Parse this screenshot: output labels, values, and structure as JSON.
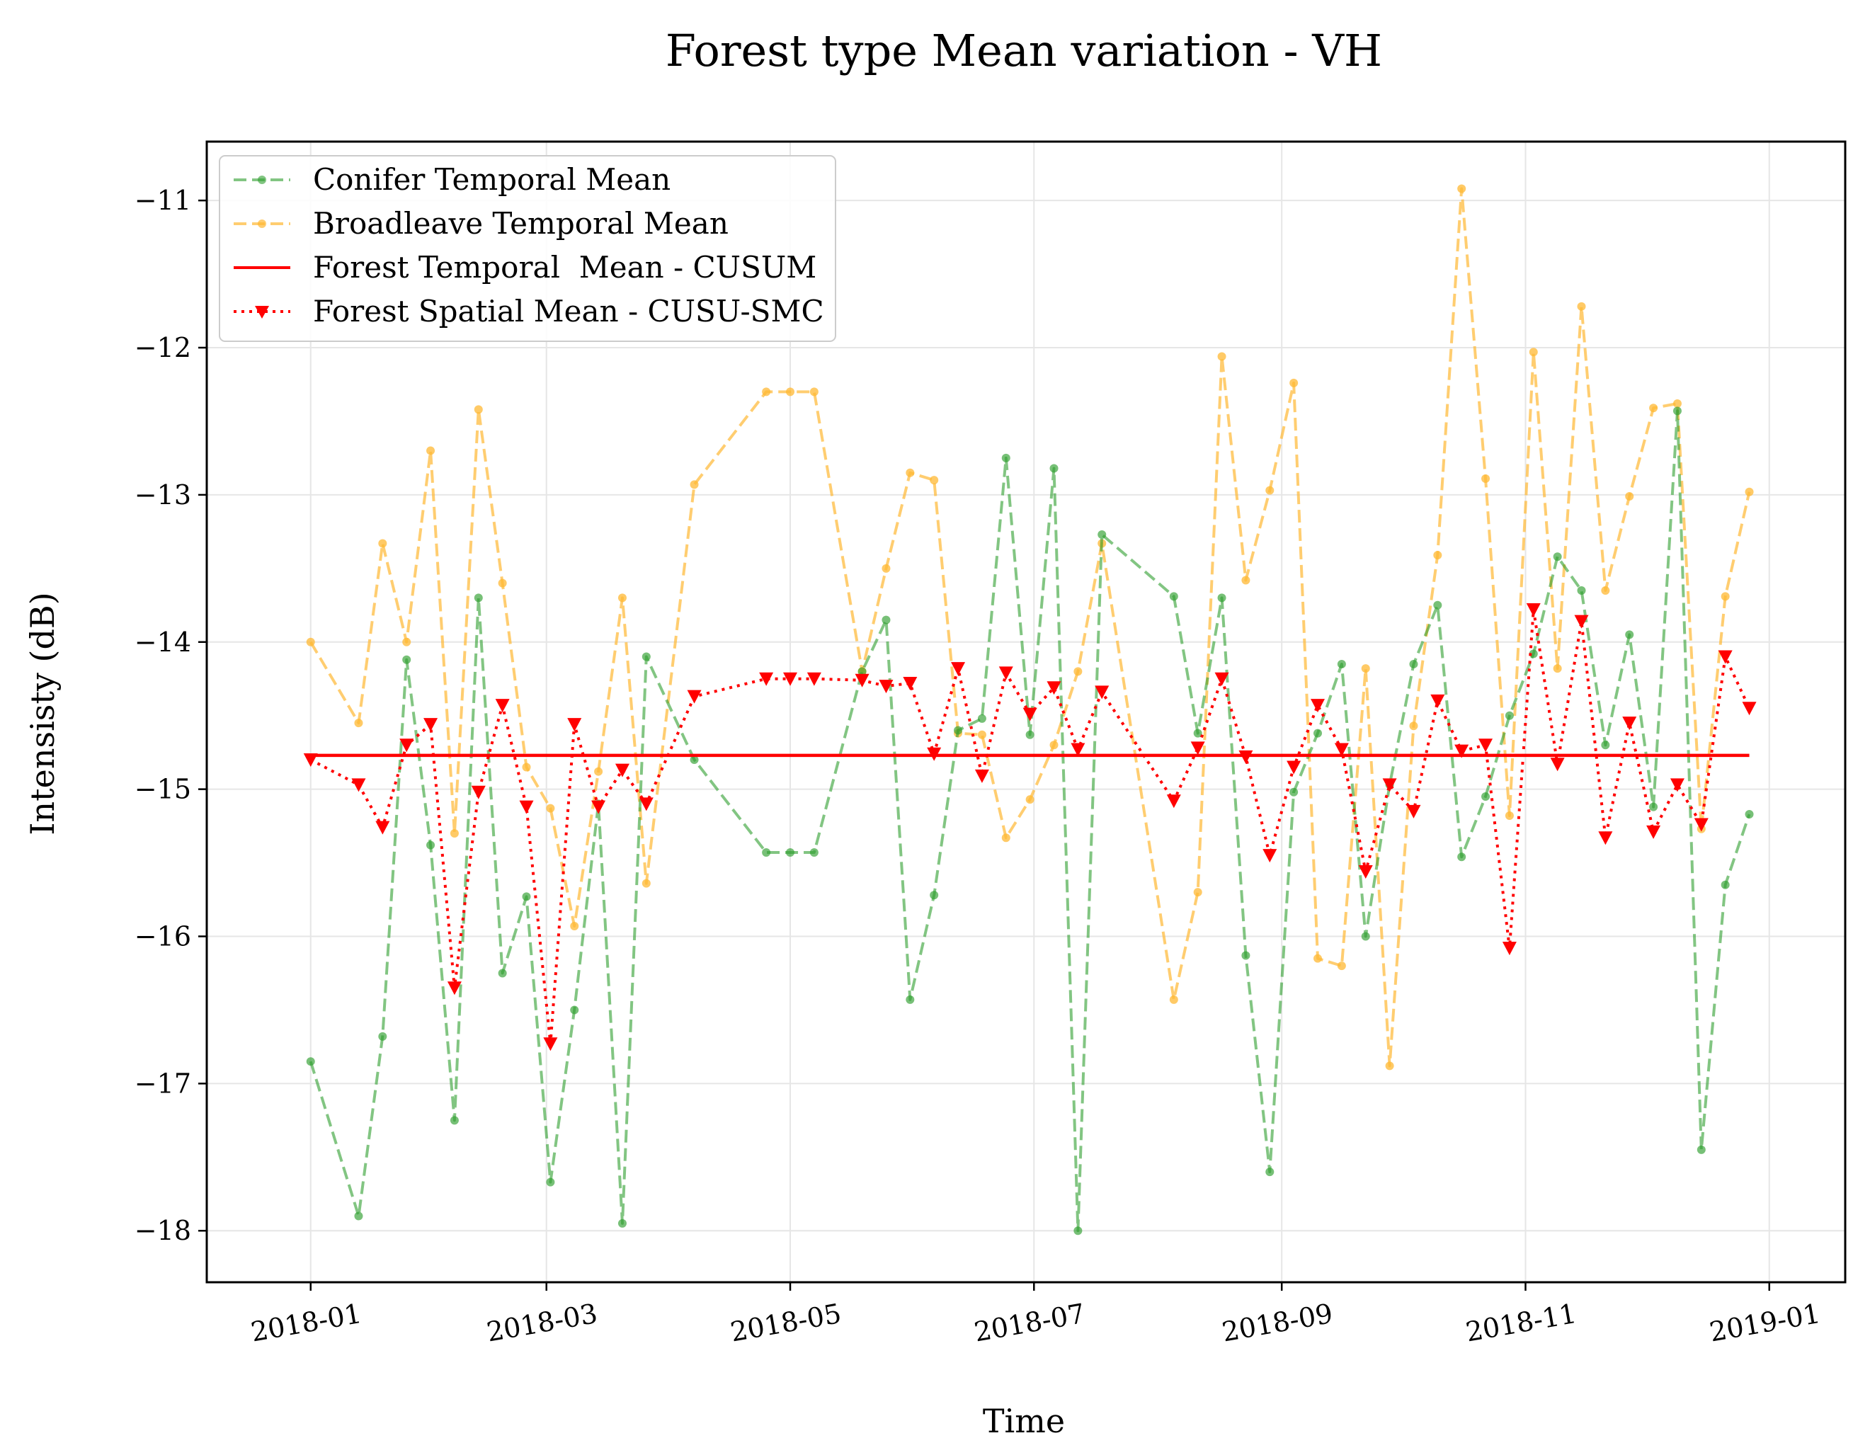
{
  "chart_data": {
    "type": "line",
    "title": "Forest type Mean variation - VH",
    "xlabel": "Time",
    "ylabel": "Intensisty (dB)",
    "xlim": [
      "2017-12-06",
      "2019-01-20"
    ],
    "ylim": [
      -18.35,
      -10.6
    ],
    "grid": true,
    "legend_position": "top-left",
    "x_ticks": [
      "2018-01",
      "2018-03",
      "2018-05",
      "2018-07",
      "2018-09",
      "2018-11",
      "2019-01"
    ],
    "x_tick_dates": [
      "2018-01-01",
      "2018-03-01",
      "2018-05-01",
      "2018-07-01",
      "2018-09-01",
      "2018-11-01",
      "2019-01-01"
    ],
    "y_ticks": [
      -11,
      -12,
      -13,
      -14,
      -15,
      -16,
      -17,
      -18
    ],
    "y_tick_labels": [
      "−11",
      "−12",
      "−13",
      "−14",
      "−15",
      "−16",
      "−17",
      "−18"
    ],
    "dates": [
      "2018-01-01",
      "2018-01-13",
      "2018-01-19",
      "2018-01-25",
      "2018-01-31",
      "2018-02-06",
      "2018-02-12",
      "2018-02-18",
      "2018-02-24",
      "2018-03-02",
      "2018-03-08",
      "2018-03-14",
      "2018-03-20",
      "2018-03-26",
      "2018-04-07",
      "2018-04-25",
      "2018-05-01",
      "2018-05-07",
      "2018-05-19",
      "2018-05-25",
      "2018-05-31",
      "2018-06-06",
      "2018-06-12",
      "2018-06-18",
      "2018-06-24",
      "2018-06-30",
      "2018-07-06",
      "2018-07-12",
      "2018-07-18",
      "2018-08-05",
      "2018-08-11",
      "2018-08-17",
      "2018-08-23",
      "2018-08-29",
      "2018-09-04",
      "2018-09-10",
      "2018-09-16",
      "2018-09-22",
      "2018-09-28",
      "2018-10-04",
      "2018-10-10",
      "2018-10-16",
      "2018-10-22",
      "2018-10-28",
      "2018-11-03",
      "2018-11-09",
      "2018-11-15",
      "2018-11-21",
      "2018-11-27",
      "2018-12-03",
      "2018-12-09",
      "2018-12-15",
      "2018-12-21",
      "2018-12-27"
    ],
    "series": [
      {
        "name": "Conifer Temporal Mean",
        "color": "#2e9e2e",
        "style": "dashed-dot-markers",
        "values": [
          -16.85,
          -17.9,
          -16.68,
          -14.12,
          -15.38,
          -17.25,
          -13.7,
          -16.25,
          -15.73,
          -17.67,
          -16.5,
          -15.1,
          -17.95,
          -14.1,
          -14.8,
          -15.43,
          -15.43,
          -15.43,
          -14.2,
          -13.85,
          -16.43,
          -15.72,
          -14.6,
          -14.52,
          -12.75,
          -14.63,
          -12.82,
          -18.0,
          -13.27,
          -13.69,
          -14.62,
          -13.7,
          -16.13,
          -17.6,
          -15.02,
          -14.62,
          -14.15,
          -16.0,
          -14.97,
          -14.15,
          -13.75,
          -15.46,
          -15.05,
          -14.5,
          -14.08,
          -13.42,
          -13.65,
          -14.7,
          -13.95,
          -15.12,
          -12.43,
          -17.45,
          -15.65,
          -15.17
        ]
      },
      {
        "name": "Broadleave Temporal Mean",
        "color": "#ffb833",
        "style": "dashed-dot-markers",
        "values": [
          -14.0,
          -14.55,
          -13.33,
          -14.0,
          -12.7,
          -15.3,
          -12.42,
          -13.6,
          -14.85,
          -15.13,
          -15.93,
          -14.88,
          -13.7,
          -15.64,
          -12.93,
          -12.3,
          -12.3,
          -12.3,
          -14.2,
          -13.5,
          -12.85,
          -12.9,
          -14.62,
          -14.63,
          -15.33,
          -15.07,
          -14.7,
          -14.2,
          -13.33,
          -16.43,
          -15.7,
          -12.06,
          -13.58,
          -12.97,
          -12.24,
          -16.15,
          -16.2,
          -14.18,
          -16.88,
          -14.57,
          -13.41,
          -10.92,
          -12.89,
          -15.18,
          -12.03,
          -14.18,
          -11.72,
          -13.65,
          -13.01,
          -12.41,
          -12.38,
          -15.27,
          -13.69,
          -12.98
        ]
      },
      {
        "name": "Forest Temporal  Mean - CUSUM",
        "color": "#ff0000",
        "style": "solid",
        "value": -14.77
      },
      {
        "name": "Forest Spatial Mean - CUSU-SMC",
        "color": "#ff0000",
        "style": "dotted-triangle-markers",
        "values": [
          -14.8,
          -14.97,
          -15.26,
          -14.7,
          -14.56,
          -16.35,
          -15.02,
          -14.43,
          -15.12,
          -16.73,
          -14.56,
          -15.12,
          -14.87,
          -15.1,
          -14.37,
          -14.25,
          -14.25,
          -14.25,
          -14.26,
          -14.3,
          -14.28,
          -14.76,
          -14.18,
          -14.91,
          -14.21,
          -14.49,
          -14.31,
          -14.73,
          -14.34,
          -15.08,
          -14.72,
          -14.25,
          -14.78,
          -15.45,
          -14.85,
          -14.43,
          -14.73,
          -15.56,
          -14.97,
          -15.15,
          -14.4,
          -14.74,
          -14.7,
          -16.08,
          -13.78,
          -14.83,
          -13.86,
          -15.33,
          -14.55,
          -15.29,
          -14.97,
          -15.24,
          -14.1,
          -14.45
        ]
      }
    ]
  }
}
